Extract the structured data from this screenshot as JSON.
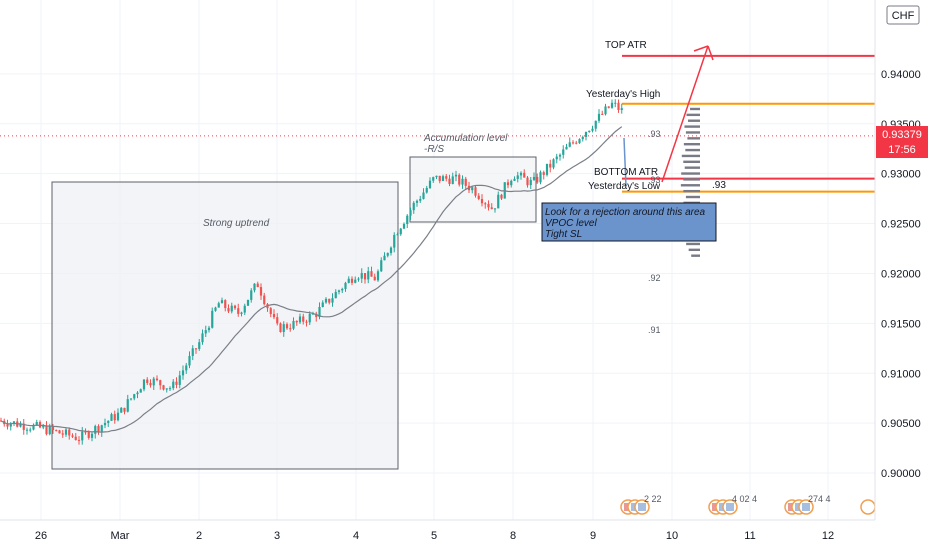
{
  "currency_badge": "CHF",
  "price_tag": {
    "value": "0.93379",
    "timer": "17:56",
    "color": "#f23645"
  },
  "colors": {
    "up": "#26a69a",
    "down": "#ef5350",
    "ma": "#7a7e87",
    "atr": "#f23645",
    "daily": "#ff9800",
    "note_bg": "#6b93cc"
  },
  "annotations": {
    "strong_uptrend": "Strong uptrend",
    "accumulation_line1": "Accumulation level",
    "accumulation_line2": "-R/S",
    "top_atr": "TOP ATR",
    "yesterdays_high": "Yesterday's High",
    "bottom_atr": "BOTTOM ATR",
    "yesterdays_low": "Yesterday's Low",
    "profile_label": ".93",
    "note_lines": [
      "Look for a rejection around this area",
      "VPOC level",
      "Tight SL"
    ]
  },
  "volume_levels": [
    ".93",
    ".93",
    ".92",
    ".91"
  ],
  "events": [
    {
      "label": "2 22",
      "date": "Mar 9"
    },
    {
      "label": "4 02 4",
      "date": "Mar 10"
    },
    {
      "label": "274 4",
      "date": "Mar 11"
    }
  ],
  "chart_data": {
    "type": "candlestick",
    "title": "",
    "xlabel": "",
    "ylabel": "",
    "x_ticks": [
      "26",
      "Mar",
      "2",
      "3",
      "4",
      "5",
      "8",
      "9",
      "10",
      "11",
      "12"
    ],
    "y_ticks": [
      "0.90000",
      "0.90500",
      "0.91000",
      "0.91500",
      "0.92000",
      "0.92500",
      "0.93000",
      "0.93500",
      "0.94000"
    ],
    "ylim": [
      0.8975,
      0.9468
    ],
    "last_price": 0.93379,
    "levels": [
      {
        "name": "TOP ATR",
        "value": 0.9418
      },
      {
        "name": "Yesterday's High",
        "value": 0.937
      },
      {
        "name": "BOTTOM ATR",
        "value": 0.9295
      },
      {
        "name": "Yesterday's Low",
        "value": 0.9282
      }
    ],
    "anchors": [
      {
        "date": "Feb 25",
        "price": 0.906
      },
      {
        "date": "Feb 26",
        "price": 0.9045
      },
      {
        "date": "Feb 26",
        "price": 0.9035
      },
      {
        "date": "Mar 1",
        "price": 0.906
      },
      {
        "date": "Mar 1",
        "price": 0.9095
      },
      {
        "date": "Mar 1",
        "price": 0.9085
      },
      {
        "date": "Mar 2",
        "price": 0.913
      },
      {
        "date": "Mar 2",
        "price": 0.917
      },
      {
        "date": "Mar 2",
        "price": 0.916
      },
      {
        "date": "Mar 2",
        "price": 0.919
      },
      {
        "date": "Mar 3",
        "price": 0.9145
      },
      {
        "date": "Mar 3",
        "price": 0.915
      },
      {
        "date": "Mar 3",
        "price": 0.916
      },
      {
        "date": "Mar 3",
        "price": 0.918
      },
      {
        "date": "Mar 4",
        "price": 0.92
      },
      {
        "date": "Mar 4",
        "price": 0.9195
      },
      {
        "date": "Mar 4",
        "price": 0.924
      },
      {
        "date": "Mar 4",
        "price": 0.927
      },
      {
        "date": "Mar 5",
        "price": 0.9295
      },
      {
        "date": "Mar 5",
        "price": 0.9295
      },
      {
        "date": "Mar 5",
        "price": 0.9285
      },
      {
        "date": "Mar 5",
        "price": 0.9265
      },
      {
        "date": "Mar 8",
        "price": 0.93
      },
      {
        "date": "Mar 8",
        "price": 0.929
      },
      {
        "date": "Mar 8",
        "price": 0.931
      },
      {
        "date": "Mar 8",
        "price": 0.933
      },
      {
        "date": "Mar 9",
        "price": 0.935
      },
      {
        "date": "Mar 9",
        "price": 0.937
      },
      {
        "date": "Mar 9",
        "price": 0.9355
      },
      {
        "date": "Mar 9",
        "price": 0.93379
      }
    ]
  }
}
